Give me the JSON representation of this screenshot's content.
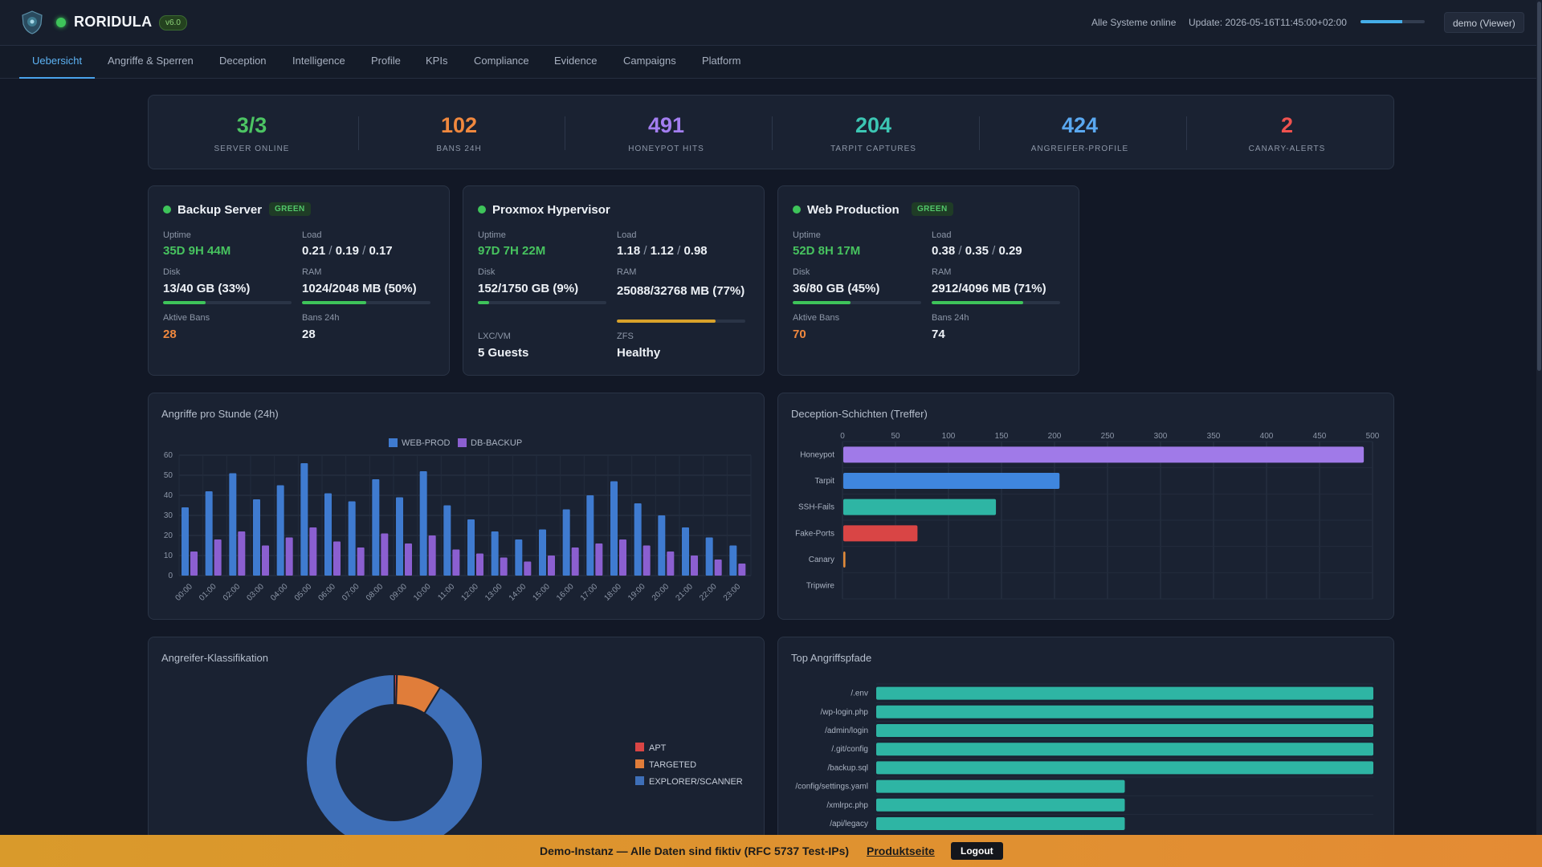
{
  "app": {
    "title": "RORIDULA",
    "version": "v6.0",
    "system_status": "Alle Systeme online",
    "update": "Update: 2026-05-16T11:45:00+02:00",
    "refresh_progress": 0.65,
    "user": "demo (Viewer)"
  },
  "tabs": [
    {
      "label": "Uebersicht",
      "active": true
    },
    {
      "label": "Angriffe & Sperren"
    },
    {
      "label": "Deception"
    },
    {
      "label": "Intelligence"
    },
    {
      "label": "Profile"
    },
    {
      "label": "KPIs"
    },
    {
      "label": "Compliance"
    },
    {
      "label": "Evidence"
    },
    {
      "label": "Campaigns"
    },
    {
      "label": "Platform"
    }
  ],
  "kpis": [
    {
      "value": "3/3",
      "label": "SERVER ONLINE",
      "color": "#4cc463"
    },
    {
      "value": "102",
      "label": "BANS 24H",
      "color": "#f0883e"
    },
    {
      "value": "491",
      "label": "HONEYPOT HITS",
      "color": "#a37ef0"
    },
    {
      "value": "204",
      "label": "TARPIT CAPTURES",
      "color": "#3cc6b3"
    },
    {
      "value": "424",
      "label": "ANGREIFER-PROFILE",
      "color": "#5aa8f0"
    },
    {
      "value": "2",
      "label": "CANARY-ALERTS",
      "color": "#f0524f"
    }
  ],
  "servers": [
    {
      "name": "Backup Server",
      "badge": "GREEN",
      "uptime_label": "Uptime",
      "uptime": "35D 9H 44M",
      "load_label": "Load",
      "load": [
        "0.21",
        "0.19",
        "0.17"
      ],
      "disk_label": "Disk",
      "disk": "13/40 GB (33%)",
      "disk_pct": 33,
      "ram_label": "RAM",
      "ram": "1024/2048 MB (50%)",
      "ram_pct": 50,
      "bans_label": "Aktive Bans",
      "bans": "28",
      "bans24_label": "Bans 24h",
      "bans24": "28"
    },
    {
      "name": "Proxmox Hypervisor",
      "uptime_label": "Uptime",
      "uptime": "97D 7H 22M",
      "load_label": "Load",
      "load": [
        "1.18",
        "1.12",
        "0.98"
      ],
      "disk_label": "Disk",
      "disk": "152/1750 GB (9%)",
      "disk_pct": 9,
      "ram_label": "RAM",
      "ram": "25088/32768 MB (77%)",
      "ram_pct": 77,
      "lxc_label": "LXC/VM",
      "lxc": "5 Guests",
      "zfs_label": "ZFS",
      "zfs": "Healthy"
    },
    {
      "name": "Web Production",
      "badge": "GREEN",
      "uptime_label": "Uptime",
      "uptime": "52D 8H 17M",
      "load_label": "Load",
      "load": [
        "0.38",
        "0.35",
        "0.29"
      ],
      "disk_label": "Disk",
      "disk": "36/80 GB (45%)",
      "disk_pct": 45,
      "ram_label": "RAM",
      "ram": "2912/4096 MB (71%)",
      "ram_pct": 71,
      "bans_label": "Aktive Bans",
      "bans": "70",
      "bans24_label": "Bans 24h",
      "bans24": "74"
    }
  ],
  "charts": {
    "hourly_title": "Angriffe pro Stunde (24h)",
    "deception_title": "Deception-Schichten (Treffer)",
    "class_title": "Angreifer-Klassifikation",
    "paths_title": "Top Angriffspfade"
  },
  "chart_data": [
    {
      "type": "bar",
      "title": "Angriffe pro Stunde (24h)",
      "categories": [
        "00:00",
        "01:00",
        "02:00",
        "03:00",
        "04:00",
        "05:00",
        "06:00",
        "07:00",
        "08:00",
        "09:00",
        "10:00",
        "11:00",
        "12:00",
        "13:00",
        "14:00",
        "15:00",
        "16:00",
        "17:00",
        "18:00",
        "19:00",
        "20:00",
        "21:00",
        "22:00",
        "23:00"
      ],
      "series": [
        {
          "name": "WEB-PROD",
          "color": "#3f7bd0",
          "values": [
            34,
            42,
            51,
            38,
            45,
            56,
            41,
            37,
            48,
            39,
            52,
            35,
            28,
            22,
            18,
            23,
            33,
            40,
            47,
            36,
            30,
            24,
            19,
            15
          ]
        },
        {
          "name": "DB-BACKUP",
          "color": "#8b5fd0",
          "values": [
            12,
            18,
            22,
            15,
            19,
            24,
            17,
            14,
            21,
            16,
            20,
            13,
            11,
            9,
            7,
            10,
            14,
            16,
            18,
            15,
            12,
            10,
            8,
            6
          ]
        }
      ],
      "ylim": [
        0,
        60
      ],
      "yticks": [
        0,
        10,
        20,
        30,
        40,
        50,
        60
      ],
      "legend": "top"
    },
    {
      "type": "bar",
      "orientation": "horizontal",
      "title": "Deception-Schichten (Treffer)",
      "categories": [
        "Honeypot",
        "Tarpit",
        "SSH-Fails",
        "Fake-Ports",
        "Canary",
        "Tripwire"
      ],
      "values": [
        491,
        204,
        144,
        70,
        2,
        0
      ],
      "colors": [
        "#a07ae8",
        "#3f86de",
        "#2eb5a4",
        "#d94545",
        "#e08a3a",
        "#888888"
      ],
      "xlim": [
        0,
        500
      ],
      "xticks": [
        0,
        50,
        100,
        150,
        200,
        250,
        300,
        350,
        400,
        450,
        500
      ]
    },
    {
      "type": "pie",
      "variant": "donut",
      "title": "Angreifer-Klassifikation",
      "labels": [
        "APT",
        "TARGETED",
        "EXPLORER/SCANNER"
      ],
      "values": [
        2,
        35,
        387
      ],
      "colors": [
        "#d94545",
        "#e07d3a",
        "#3e6fb8"
      ],
      "legend": "right"
    },
    {
      "type": "bar",
      "orientation": "horizontal",
      "title": "Top Angriffspfade",
      "categories": [
        "/.env",
        "/wp-login.php",
        "/admin/login",
        "/.git/config",
        "/backup.sql",
        "/config/settings.yaml",
        "/xmlrpc.php",
        "/api/legacy"
      ],
      "values": [
        2,
        2,
        2,
        2,
        2,
        1,
        1,
        1
      ],
      "color": "#2eb5a4",
      "xlim": [
        0,
        2
      ]
    }
  ],
  "banner": {
    "text": "Demo-Instanz — Alle Daten sind fiktiv (RFC 5737 Test-IPs)",
    "link": "Produktseite",
    "logout": "Logout"
  }
}
